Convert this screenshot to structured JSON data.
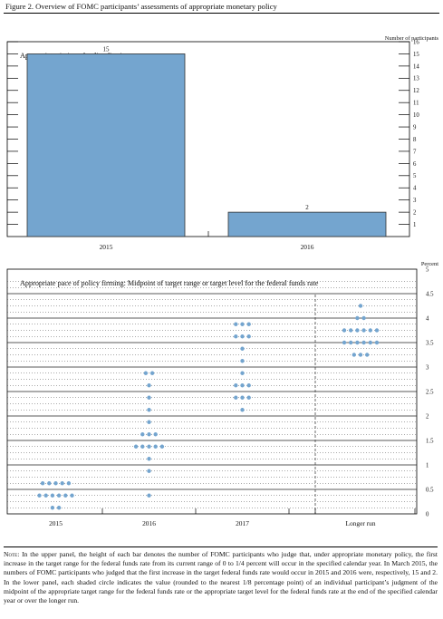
{
  "figure_title": "Figure 2. Overview of FOMC participants’ assessments of appropriate monetary policy",
  "note_label": "Note:",
  "note_text": " In the upper panel, the height of each bar denotes the number of FOMC participants who judge that, under appropriate monetary policy, the first increase in the target range for the federal funds rate from its current range of 0 to 1/4 percent will occur in the specified calendar year. In March 2015, the numbers of FOMC participants who judged that the first increase in the target federal funds rate would occur in 2015 and 2016 were, respectively, 15 and 2. In the lower panel, each shaded circle indicates the value (rounded to the nearest 1/8 percentage point) of an individual participant’s judgment of the midpoint of the appropriate target range for the federal funds rate or the appropriate target level for the federal funds rate at the end of the specified calendar year or over the longer run.",
  "chart_data": [
    {
      "type": "bar",
      "title": "Appropriate timing of policy firming",
      "ylabel": "Number of participants",
      "categories": [
        "2015",
        "2016"
      ],
      "values": [
        15,
        2
      ],
      "data_labels": [
        "15",
        "2"
      ],
      "ylim": [
        0,
        16
      ],
      "yticks": [
        1,
        2,
        3,
        4,
        5,
        6,
        7,
        8,
        9,
        10,
        11,
        12,
        13,
        14,
        15,
        16
      ],
      "bar_color": "#74a5cf",
      "grid": false
    },
    {
      "type": "scatter",
      "title": "Appropriate pace of policy firming: Midpoint of target range or target level for the federal funds rate",
      "ylabel": "Percent",
      "categories": [
        "2015",
        "2016",
        "2017",
        "Longer run"
      ],
      "ylim": [
        0,
        5
      ],
      "yticks": [
        0,
        0.5,
        1,
        1.5,
        2,
        2.5,
        3,
        3.5,
        4,
        4.5,
        5
      ],
      "ytick_labels": [
        "0",
        "0.5",
        "1",
        "1.5",
        "2",
        "2.5",
        "3",
        "3.5",
        "4",
        "4.5",
        "5"
      ],
      "dot_color": "#74a5cf",
      "grid": "dotted horizontal lines every 0.125; solid lines at each 0.5",
      "separator": "dashed vertical line before Longer run",
      "dot_counts": [
        {
          "category": "2015",
          "rates": [
            0.125,
            0.375,
            0.625
          ],
          "counts": [
            2,
            6,
            5
          ]
        },
        {
          "category": "2016",
          "rates": [
            0.375,
            0.875,
            1.125,
            1.375,
            1.625,
            1.875,
            2.125,
            2.375,
            2.625,
            2.875
          ],
          "counts": [
            1,
            1,
            1,
            5,
            3,
            1,
            1,
            1,
            1,
            2
          ]
        },
        {
          "category": "2017",
          "rates": [
            2.125,
            2.375,
            2.625,
            2.875,
            3.125,
            3.375,
            3.625,
            3.875
          ],
          "counts": [
            1,
            3,
            3,
            1,
            1,
            1,
            3,
            3
          ]
        },
        {
          "category": "Longer run",
          "rates": [
            3.25,
            3.5,
            3.75,
            4.0,
            4.25
          ],
          "counts": [
            3,
            6,
            6,
            2,
            1
          ]
        }
      ]
    }
  ]
}
